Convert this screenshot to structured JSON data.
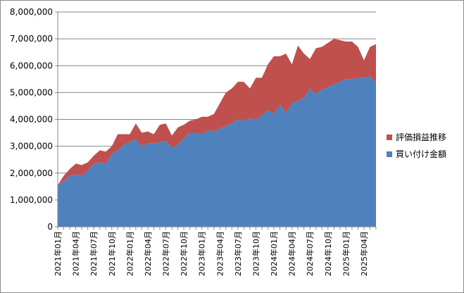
{
  "chart_data": {
    "type": "area",
    "stacked": true,
    "title": "",
    "xlabel": "",
    "ylabel": "",
    "ylim": [
      0,
      8000000
    ],
    "yticks": [
      0,
      1000000,
      2000000,
      3000000,
      4000000,
      5000000,
      6000000,
      7000000,
      8000000
    ],
    "ytick_labels": [
      "0",
      "1,000,000",
      "2,000,000",
      "3,000,000",
      "4,000,000",
      "5,000,000",
      "6,000,000",
      "7,000,000",
      "8,000,000"
    ],
    "grid": "horizontal",
    "legend_position": "right",
    "categories": [
      "2021年01月",
      "2021年02月",
      "2021年03月",
      "2021年04月",
      "2021年05月",
      "2021年06月",
      "2021年07月",
      "2021年08月",
      "2021年09月",
      "2021年10月",
      "2021年11月",
      "2021年12月",
      "2022年01月",
      "2022年02月",
      "2022年03月",
      "2022年04月",
      "2022年05月",
      "2022年06月",
      "2022年07月",
      "2022年08月",
      "2022年09月",
      "2022年10月",
      "2022年11月",
      "2022年12月",
      "2023年01月",
      "2023年02月",
      "2023年03月",
      "2023年04月",
      "2023年05月",
      "2023年06月",
      "2023年07月",
      "2023年08月",
      "2023年09月",
      "2023年10月",
      "2023年11月",
      "2023年12月",
      "2024年01月",
      "2024年02月",
      "2024年03月",
      "2024年04月",
      "2024年05月",
      "2024年06月",
      "2024年07月",
      "2024年08月",
      "2024年09月",
      "2024年10月",
      "2024年11月",
      "2024年12月",
      "2025年01月",
      "2025年02月",
      "2025年03月",
      "2025年04月",
      "2025年05月",
      "2025年06月"
    ],
    "xtick_labels": [
      "2021年01月",
      "2021年04月",
      "2021年07月",
      "2021年10月",
      "2022年01月",
      "2022年04月",
      "2022年07月",
      "2022年10月",
      "2023年01月",
      "2023年04月",
      "2023年07月",
      "2023年10月",
      "2024年01月",
      "2024年04月",
      "2024年07月",
      "2024年10月",
      "2025年01月",
      "2025年04月"
    ],
    "xtick_indices": [
      0,
      3,
      6,
      9,
      12,
      15,
      18,
      21,
      24,
      27,
      30,
      33,
      36,
      39,
      42,
      45,
      48,
      51
    ],
    "series": [
      {
        "name": "買い付け金額",
        "color": "#4f81bd",
        "values": [
          1550000,
          1700000,
          1900000,
          1950000,
          1900000,
          2100000,
          2350000,
          2400000,
          2350000,
          2700000,
          2850000,
          3050000,
          3150000,
          3250000,
          3000000,
          3100000,
          3100000,
          3150000,
          3200000,
          2950000,
          3050000,
          3300000,
          3500000,
          3500000,
          3450000,
          3600000,
          3550000,
          3650000,
          3750000,
          3850000,
          4000000,
          3950000,
          4050000,
          4000000,
          4150000,
          4350000,
          4200000,
          4550000,
          4250000,
          4600000,
          4700000,
          4800000,
          5150000,
          4950000,
          5100000,
          5200000,
          5300000,
          5400000,
          5500000,
          5500000,
          5550000,
          5550000,
          5600000,
          5350000
        ]
      },
      {
        "name": "評価損益推移",
        "color": "#c0504d",
        "values": [
          0,
          200000,
          250000,
          400000,
          400000,
          300000,
          300000,
          450000,
          450000,
          300000,
          600000,
          400000,
          300000,
          600000,
          500000,
          450000,
          350000,
          650000,
          650000,
          450000,
          650000,
          500000,
          450000,
          500000,
          650000,
          500000,
          650000,
          950000,
          1250000,
          1300000,
          1400000,
          1450000,
          1100000,
          1550000,
          1400000,
          1700000,
          2150000,
          1800000,
          2200000,
          1450000,
          2050000,
          1650000,
          1100000,
          1700000,
          1600000,
          1650000,
          1700000,
          1550000,
          1400000,
          1400000,
          1150000,
          650000,
          1100000,
          1450000
        ]
      }
    ]
  }
}
